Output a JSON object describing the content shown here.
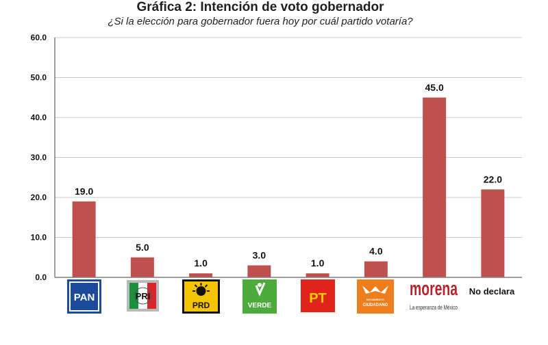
{
  "title": "Gráfica 2: Intención de voto gobernador",
  "subtitle": "¿Si la elección para gobernador fuera hoy por cuál partido votaría?",
  "colors": {
    "bar": "#c0504d",
    "grid": "#c8c8c8",
    "axis": "#7f7f7f"
  },
  "chart_data": {
    "type": "bar",
    "title": "Gráfica 2: Intención de voto gobernador",
    "subtitle": "¿Si la elección para gobernador fuera hoy por cuál partido votaría?",
    "categories": [
      "PAN",
      "PRI",
      "PRD",
      "VERDE",
      "PT",
      "MOVIMIENTO CIUDADANO",
      "morena",
      "No declara"
    ],
    "values": [
      19.0,
      5.0,
      1.0,
      3.0,
      1.0,
      4.0,
      45.0,
      22.0
    ],
    "data_labels": [
      "19.0",
      "5.0",
      "1.0",
      "3.0",
      "1.0",
      "4.0",
      "45.0",
      "22.0"
    ],
    "yticks": [
      "0.0",
      "10.0",
      "20.0",
      "30.0",
      "40.0",
      "50.0",
      "60.0"
    ],
    "ylim": [
      0,
      60
    ],
    "grid": true,
    "legend": "none"
  },
  "logos": {
    "pan": "PAN",
    "pri": "PRI",
    "prd": "PRD",
    "verde": "VERDE",
    "pt": "PT",
    "mc_small": "MOVIMIENTO",
    "mc_big": "CIUDADANO",
    "morena": "morena",
    "morena_tag": "La esperanza de México",
    "no_declara": "No declara"
  }
}
